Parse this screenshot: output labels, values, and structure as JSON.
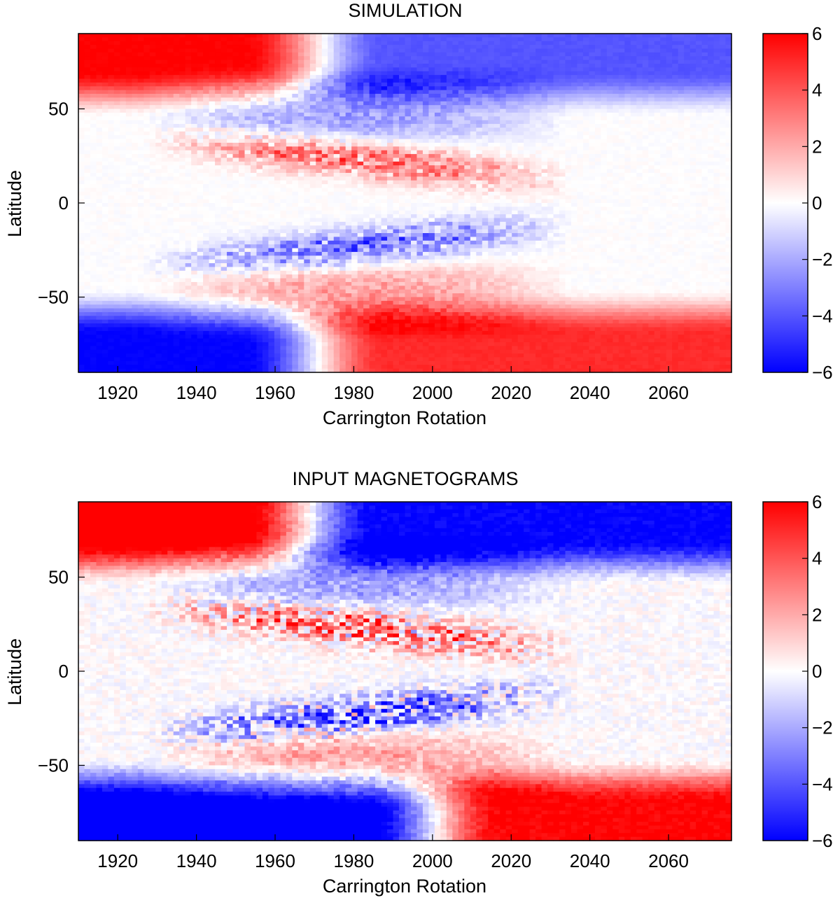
{
  "chart_data": [
    {
      "type": "heatmap",
      "title": "SIMULATION",
      "xlabel": "Carrington Rotation",
      "ylabel": "Latitude",
      "xlim": [
        1910,
        2076
      ],
      "ylim": [
        -90,
        90
      ],
      "xticks": [
        "1920",
        "1940",
        "1960",
        "1980",
        "2000",
        "2020",
        "2040",
        "2060"
      ],
      "xtick_values": [
        1920,
        1940,
        1960,
        1980,
        2000,
        2020,
        2040,
        2060
      ],
      "yticks": [
        "50",
        "0",
        "−50"
      ],
      "ytick_values": [
        50,
        0,
        -50
      ],
      "colorbar": {
        "range": [
          -6,
          6
        ],
        "ticks": [
          "6",
          "4",
          "2",
          "0",
          "−2",
          "−4",
          "−6"
        ],
        "tick_values": [
          6,
          4,
          2,
          0,
          -2,
          -4,
          -6
        ],
        "colors": {
          "negative": "#0000ff",
          "zero": "#ffffff",
          "positive": "#ff0000"
        }
      },
      "pattern": {
        "north_pole_start": 6,
        "north_pole_end": -4,
        "north_reversal_rotation": 1970,
        "south_pole_start": -6,
        "south_pole_end": 5,
        "south_reversal_rotation": 1970,
        "activity_band_start_lat": 35,
        "activity_band_end_lat": 5,
        "activity_start_rotation": 1926,
        "activity_end_rotation": 2064,
        "noise": 0.35
      }
    },
    {
      "type": "heatmap",
      "title": "INPUT MAGNETOGRAMS",
      "xlabel": "Carrington Rotation",
      "ylabel": "Latitude",
      "xlim": [
        1910,
        2076
      ],
      "ylim": [
        -90,
        90
      ],
      "xticks": [
        "1920",
        "1940",
        "1960",
        "1980",
        "2000",
        "2020",
        "2040",
        "2060"
      ],
      "xtick_values": [
        1920,
        1940,
        1960,
        1980,
        2000,
        2020,
        2040,
        2060
      ],
      "yticks": [
        "50",
        "0",
        "−50"
      ],
      "ytick_values": [
        50,
        0,
        -50
      ],
      "colorbar": {
        "range": [
          -6,
          6
        ],
        "ticks": [
          "6",
          "4",
          "2",
          "0",
          "−2",
          "−4",
          "−6"
        ],
        "tick_values": [
          6,
          4,
          2,
          0,
          -2,
          -4,
          -6
        ],
        "colors": {
          "negative": "#0000ff",
          "zero": "#ffffff",
          "positive": "#ff0000"
        }
      },
      "pattern": {
        "north_pole_start": 7,
        "north_pole_end": -6,
        "north_reversal_rotation": 1968,
        "south_pole_start": -7,
        "south_pole_end": 6,
        "south_reversal_rotation": 2000,
        "activity_band_start_lat": 35,
        "activity_band_end_lat": 5,
        "activity_start_rotation": 1926,
        "activity_end_rotation": 2064,
        "noise": 1.0
      }
    }
  ]
}
